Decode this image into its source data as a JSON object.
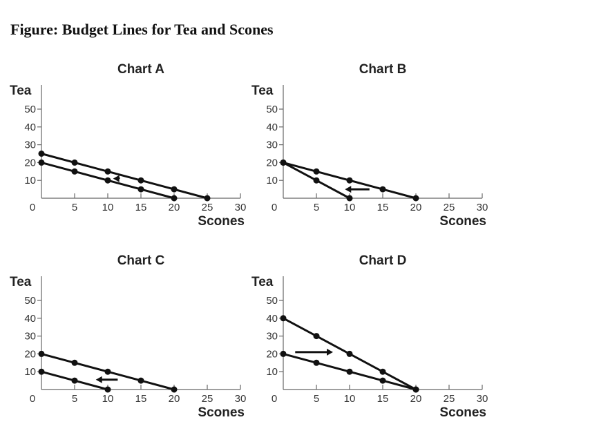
{
  "title": "Figure: Budget Lines for Tea and Scones",
  "chart_data": [
    {
      "type": "line",
      "title": "Chart A",
      "xlabel": "Scones",
      "ylabel": "Tea",
      "xlim": [
        0,
        30
      ],
      "ylim": [
        0,
        55
      ],
      "xticks": [
        0,
        5,
        10,
        15,
        20,
        25,
        30
      ],
      "yticks": [
        10,
        20,
        30,
        40,
        50
      ],
      "series": [
        {
          "x": [
            0,
            5,
            10,
            15,
            20,
            25
          ],
          "y": [
            25,
            20,
            15,
            10,
            5,
            0
          ]
        },
        {
          "x": [
            0,
            5,
            10,
            15,
            20
          ],
          "y": [
            20,
            15,
            10,
            5,
            0
          ]
        }
      ],
      "arrow": {
        "from": [
          11.8,
          11.5
        ],
        "to": [
          10.8,
          11
        ],
        "direction": "left"
      }
    },
    {
      "type": "line",
      "title": "Chart B",
      "xlabel": "Scones",
      "ylabel": "Tea",
      "xlim": [
        0,
        30
      ],
      "ylim": [
        0,
        55
      ],
      "xticks": [
        0,
        5,
        10,
        15,
        20,
        25,
        30
      ],
      "yticks": [
        10,
        20,
        30,
        40,
        50
      ],
      "series": [
        {
          "x": [
            0,
            5,
            10,
            15,
            20
          ],
          "y": [
            20,
            15,
            10,
            5,
            0
          ]
        },
        {
          "x": [
            0,
            5,
            10
          ],
          "y": [
            20,
            10,
            0
          ]
        }
      ],
      "arrow": {
        "from": [
          13,
          5
        ],
        "to": [
          9.3,
          5
        ],
        "direction": "left"
      }
    },
    {
      "type": "line",
      "title": "Chart C",
      "xlabel": "Scones",
      "ylabel": "Tea",
      "xlim": [
        0,
        30
      ],
      "ylim": [
        0,
        55
      ],
      "xticks": [
        0,
        5,
        10,
        15,
        20,
        25,
        30
      ],
      "yticks": [
        10,
        20,
        30,
        40,
        50
      ],
      "series": [
        {
          "x": [
            0,
            5,
            10,
            15,
            20
          ],
          "y": [
            20,
            15,
            10,
            5,
            0
          ]
        },
        {
          "x": [
            0,
            5,
            10
          ],
          "y": [
            10,
            5,
            0
          ]
        }
      ],
      "arrow": {
        "from": [
          11.5,
          5.5
        ],
        "to": [
          8.2,
          5.5
        ],
        "direction": "left"
      }
    },
    {
      "type": "line",
      "title": "Chart D",
      "xlabel": "Scones",
      "ylabel": "Tea",
      "xlim": [
        0,
        30
      ],
      "ylim": [
        0,
        55
      ],
      "xticks": [
        0,
        5,
        10,
        15,
        20,
        25,
        30
      ],
      "yticks": [
        10,
        20,
        30,
        40,
        50
      ],
      "series": [
        {
          "x": [
            0,
            5,
            10,
            15,
            20
          ],
          "y": [
            40,
            30,
            20,
            10,
            0
          ]
        },
        {
          "x": [
            0,
            5,
            10,
            15,
            20
          ],
          "y": [
            20,
            15,
            10,
            5,
            0
          ]
        }
      ],
      "arrow": {
        "from": [
          1.8,
          21
        ],
        "to": [
          7.5,
          21
        ],
        "direction": "right"
      }
    }
  ]
}
